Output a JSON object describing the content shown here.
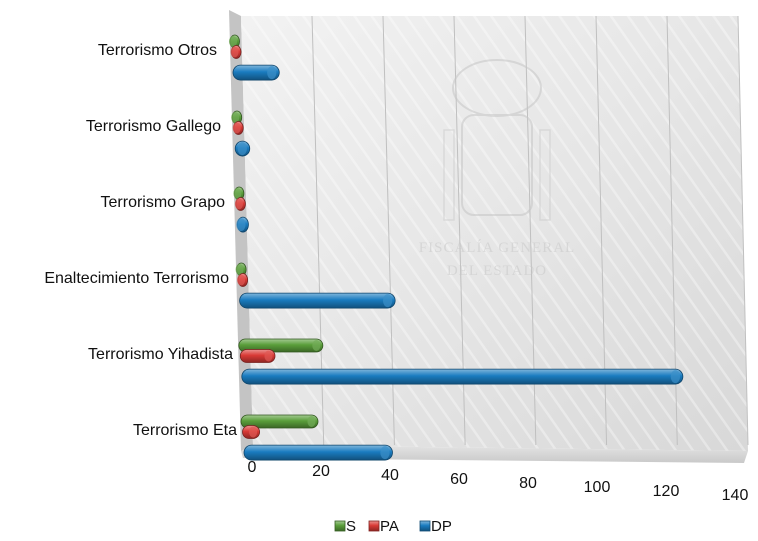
{
  "chart_data": {
    "type": "bar",
    "orientation": "horizontal",
    "categories": [
      "Terrorismo Otros",
      "Terrorismo Gallego",
      "Terrorismo Grapo",
      "Enaltecimiento Terrorismo",
      "Terrorismo Yihadista",
      "Terrorismo Eta"
    ],
    "series": [
      {
        "name": "S",
        "color": "#5a9e3a",
        "values": [
          0,
          0,
          0,
          0,
          22,
          20
        ]
      },
      {
        "name": "PA",
        "color": "#d93a36",
        "values": [
          0,
          0,
          0,
          0,
          8,
          3
        ]
      },
      {
        "name": "DP",
        "color": "#1a7cc0",
        "values": [
          11,
          2,
          1,
          42,
          123,
          40
        ]
      }
    ],
    "xlim": [
      0,
      140
    ],
    "x_ticks": [
      "0",
      "20",
      "40",
      "60",
      "80",
      "100",
      "120",
      "140"
    ],
    "grid": true,
    "legend": "bottom",
    "watermark": {
      "lines": [
        "FISCALÍA GENERAL",
        "DEL ESTADO"
      ]
    }
  }
}
